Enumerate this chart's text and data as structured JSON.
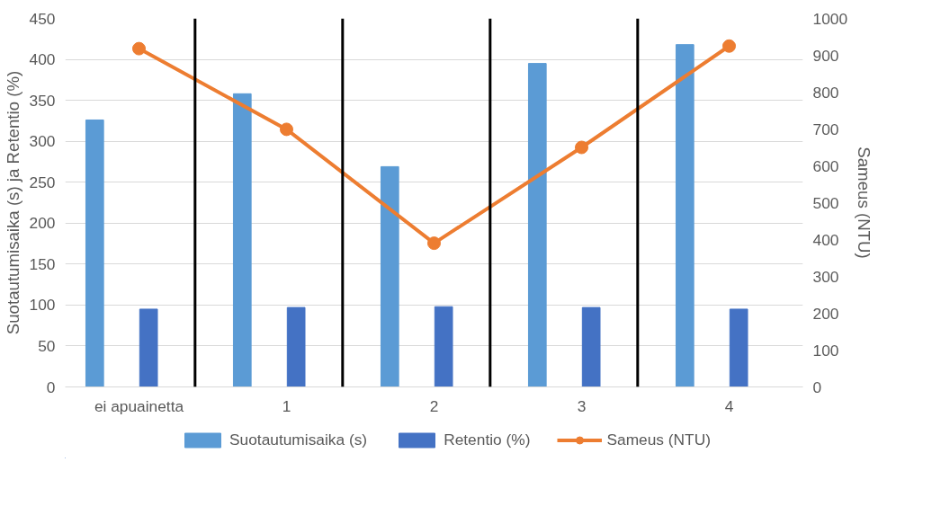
{
  "chart_data": {
    "type": "bar",
    "categories": [
      "ei apuainetta",
      "1",
      "2",
      "3",
      "4"
    ],
    "ylabel": "Suotautumisaika (s) ja Retentio (%)",
    "y2label": "Sameus (NTU)",
    "ylim": [
      0,
      450
    ],
    "yticks": [
      0,
      50,
      100,
      150,
      200,
      250,
      300,
      350,
      400,
      450
    ],
    "y2lim": [
      0,
      1000
    ],
    "y2ticks": [
      0,
      100,
      200,
      300,
      400,
      500,
      600,
      700,
      800,
      900,
      1000
    ],
    "series": [
      {
        "name": "Suotautumisaika (s)",
        "color": "#5b9bd5",
        "values": [
          326,
          358,
          269,
          395,
          418
        ]
      },
      {
        "name": "Retentio (%)",
        "color": "#4472c4",
        "values": [
          95,
          97,
          98,
          97,
          95
        ]
      },
      {
        "name": "Sameus (NTU)",
        "type": "line",
        "axis": "y2",
        "color": "#ed7d31",
        "marker": "circle",
        "values": [
          918,
          699,
          390,
          650,
          925
        ]
      }
    ],
    "grid": "y",
    "legend": "bottom"
  }
}
